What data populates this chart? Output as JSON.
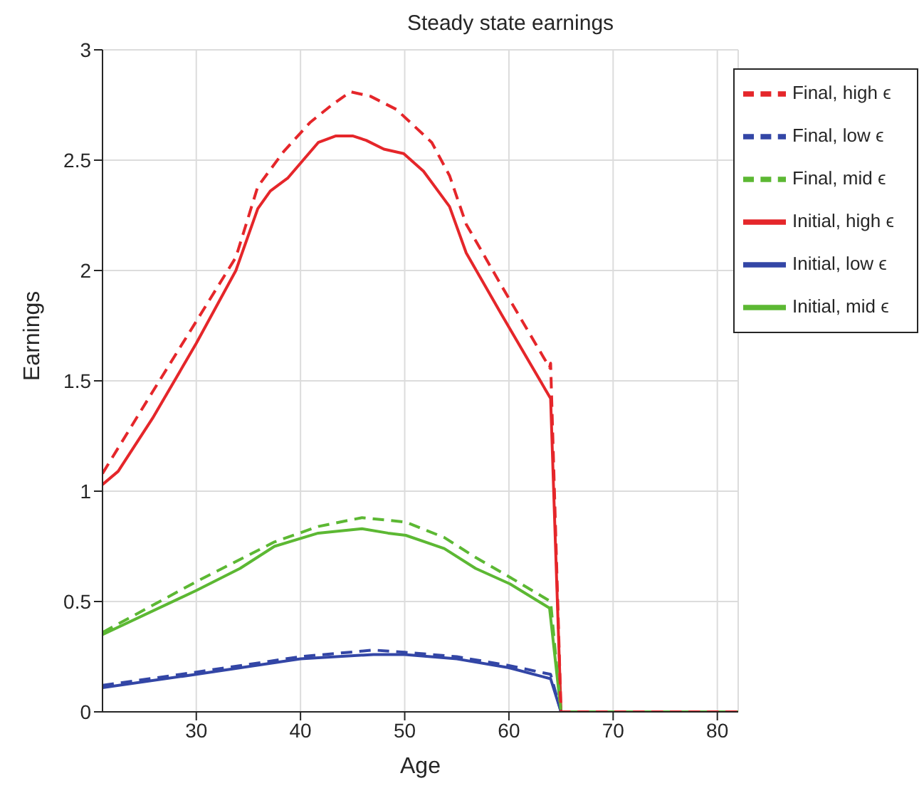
{
  "chart_data": {
    "type": "line",
    "title": "Steady state earnings",
    "xlabel": "Age",
    "ylabel": "Earnings",
    "xlim": [
      21,
      82
    ],
    "xticks": [
      30,
      40,
      50,
      60,
      70,
      80
    ],
    "ylim": [
      0,
      3
    ],
    "yticks": [
      0,
      0.5,
      1,
      1.5,
      2,
      2.5,
      3
    ],
    "grid": true,
    "legend": "top right",
    "marker": "none",
    "series": [
      {
        "name": "Initial, low ϵ",
        "color": "#3346a6",
        "line_style": "solid",
        "x": [
          21,
          30,
          40,
          47,
          50,
          55,
          60,
          64,
          65
        ],
        "values": [
          0.11,
          0.17,
          0.24,
          0.26,
          0.26,
          0.24,
          0.2,
          0.15,
          0
        ]
      },
      {
        "name": "Initial, mid ϵ",
        "color": "#5cb833",
        "line_style": "solid",
        "x": [
          21,
          30,
          34.2,
          37.5,
          41.7,
          45.9,
          48.4,
          50.1,
          53.8,
          56.8,
          60.1,
          63.9,
          65,
          70,
          75,
          82
        ],
        "values": [
          0.35,
          0.55,
          0.65,
          0.75,
          0.81,
          0.83,
          0.81,
          0.8,
          0.74,
          0.65,
          0.58,
          0.47,
          0,
          0,
          0,
          0
        ]
      },
      {
        "name": "Initial, high ϵ",
        "color": "#e5262a",
        "line_style": "solid",
        "x": [
          21,
          22.5,
          25.8,
          30,
          33.8,
          35.9,
          37.1,
          38.8,
          41.7,
          43.4,
          45,
          46.3,
          48,
          49.9,
          51.8,
          54.3,
          55.9,
          59.3,
          64,
          65,
          70,
          75,
          82
        ],
        "values": [
          1.03,
          1.09,
          1.33,
          1.67,
          2.0,
          2.28,
          2.36,
          2.42,
          2.58,
          2.61,
          2.61,
          2.59,
          2.55,
          2.53,
          2.45,
          2.29,
          2.08,
          1.8,
          1.42,
          0,
          0,
          0,
          0
        ]
      },
      {
        "name": "Final, low ϵ",
        "color": "#3346a6",
        "line_style": "dashed",
        "x": [
          21,
          30,
          40,
          47,
          50,
          55,
          60,
          64,
          65
        ],
        "values": [
          0.12,
          0.18,
          0.25,
          0.28,
          0.27,
          0.25,
          0.21,
          0.17,
          0
        ]
      },
      {
        "name": "Final, mid ϵ",
        "color": "#5cb833",
        "line_style": "dashed",
        "x": [
          21,
          30,
          37.5,
          41.7,
          45.9,
          50.1,
          53.8,
          56.8,
          60.1,
          64,
          65,
          70,
          75,
          82
        ],
        "values": [
          0.36,
          0.59,
          0.77,
          0.84,
          0.88,
          0.86,
          0.79,
          0.7,
          0.61,
          0.5,
          0,
          0,
          0,
          0
        ]
      },
      {
        "name": "Final, high ϵ",
        "color": "#e5262a",
        "line_style": "dashed",
        "x": [
          21,
          25.8,
          30,
          33.8,
          35.9,
          38.4,
          40.9,
          43,
          44.8,
          46.7,
          49.2,
          52.6,
          54.3,
          55.9,
          59.3,
          63.9,
          64,
          65,
          70,
          75,
          82
        ],
        "values": [
          1.08,
          1.45,
          1.77,
          2.06,
          2.38,
          2.54,
          2.67,
          2.75,
          2.81,
          2.79,
          2.73,
          2.58,
          2.43,
          2.21,
          1.93,
          1.56,
          1.58,
          0,
          0,
          0,
          0
        ]
      }
    ]
  }
}
